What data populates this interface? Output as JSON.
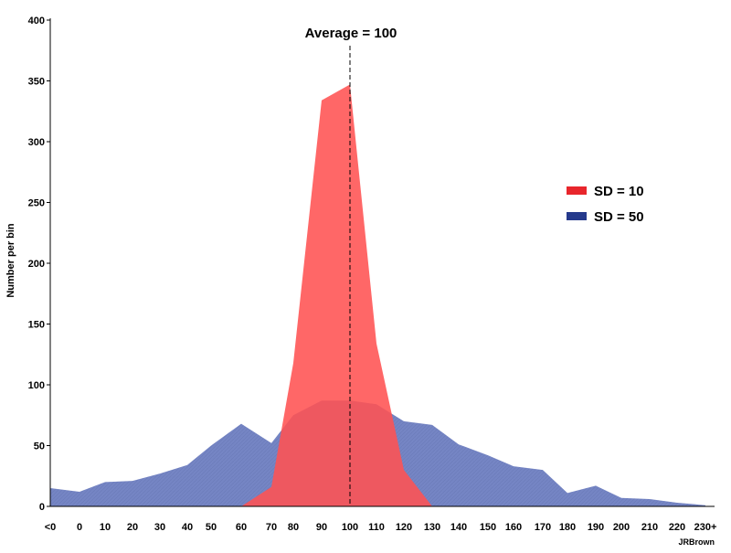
{
  "chart_data": {
    "type": "area",
    "x": [
      "<0",
      "0",
      "10",
      "20",
      "30",
      "40",
      "50",
      "60",
      "70",
      "80",
      "90",
      "100",
      "110",
      "120",
      "130",
      "140",
      "150",
      "160",
      "170",
      "180",
      "190",
      "200",
      "210",
      "220",
      "230+"
    ],
    "series": [
      {
        "name": "SD = 50",
        "color": "#7080c0",
        "values": [
          15,
          12,
          20,
          21,
          27,
          34,
          50,
          68,
          52,
          75,
          87,
          87,
          84,
          70,
          67,
          51,
          42,
          33,
          30,
          11,
          17,
          7,
          6,
          3,
          1
        ]
      },
      {
        "name": "SD = 10",
        "color": "#ff5a5a",
        "values": [
          0,
          0,
          0,
          0,
          0,
          0,
          0,
          0,
          16,
          118,
          334,
          347,
          134,
          30,
          0,
          0,
          0,
          0,
          0,
          0,
          0,
          0,
          0,
          0,
          0
        ]
      }
    ],
    "ylim": [
      0,
      400
    ],
    "yticks": [
      0,
      50,
      100,
      150,
      200,
      250,
      300,
      350,
      400
    ],
    "ylabel": "Number per bin",
    "xlabel": "",
    "annotation": "Average = 100",
    "average_x": "100",
    "credit": "JRBrown",
    "legend": [
      {
        "label": "SD = 10",
        "color": "#e8262c"
      },
      {
        "label": "SD = 50",
        "color": "#253a8c"
      }
    ],
    "legend_position": "right",
    "grid": false
  }
}
